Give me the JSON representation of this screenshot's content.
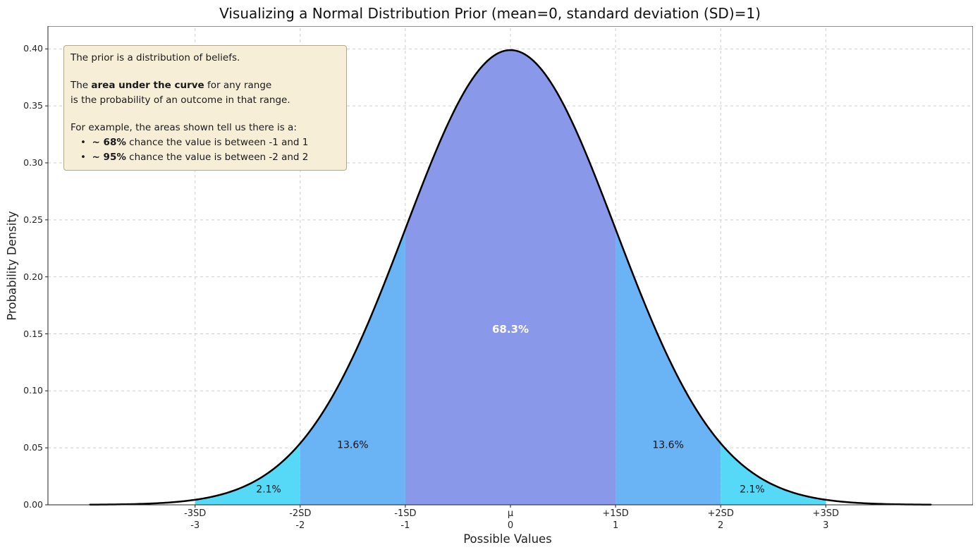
{
  "annotation": {
    "box_bg": "#f7eed8",
    "box_border": "#b4a88c",
    "text_color": "#1a1a1a",
    "line1": "The prior is a distribution of beliefs.",
    "line2_pre": "The ",
    "line2_bold": "area under the curve",
    "line2_post": " for any range",
    "line3": "is the probability of an outcome in that range.",
    "line4": "For example, the areas shown tell us there is a:",
    "bullets": [
      {
        "prefix": "•  ",
        "bold": "~ 68%",
        "text": " chance the value is between -1 and 1"
      },
      {
        "prefix": "•  ",
        "bold": "~ 95%",
        "text": " chance the value is between -2 and 2"
      }
    ]
  },
  "chart_data": {
    "type": "area",
    "title": "Visualizing a Normal Distribution Prior (mean=0, standard deviation (SD)=1)",
    "xlabel": "Possible Values",
    "ylabel": "Probability Density",
    "distribution": {
      "name": "normal",
      "mean": 0,
      "sd": 1,
      "peak_density": 0.3989
    },
    "xlim": [
      -4.4,
      4.4
    ],
    "ylim": [
      0,
      0.42
    ],
    "curve_range": [
      -4,
      4
    ],
    "curve_color": "#000000",
    "grid": true,
    "grid_color": "#cfcfcf",
    "spine_color": "#222222",
    "x_ticks": [
      {
        "value": -3,
        "line1": "-3SD",
        "line2": "-3"
      },
      {
        "value": -2,
        "line1": "-2SD",
        "line2": "-2"
      },
      {
        "value": -1,
        "line1": "-1SD",
        "line2": "-1"
      },
      {
        "value": 0,
        "line1": "μ",
        "line2": "0"
      },
      {
        "value": 1,
        "line1": "+1SD",
        "line2": "1"
      },
      {
        "value": 2,
        "line1": "+2SD",
        "line2": "2"
      },
      {
        "value": 3,
        "line1": "+3SD",
        "line2": "3"
      }
    ],
    "y_ticks": [
      {
        "value": 0.0,
        "label": "0.00"
      },
      {
        "value": 0.05,
        "label": "0.05"
      },
      {
        "value": 0.1,
        "label": "0.10"
      },
      {
        "value": 0.15,
        "label": "0.15"
      },
      {
        "value": 0.2,
        "label": "0.20"
      },
      {
        "value": 0.25,
        "label": "0.25"
      },
      {
        "value": 0.3,
        "label": "0.30"
      },
      {
        "value": 0.35,
        "label": "0.35"
      },
      {
        "value": 0.4,
        "label": "0.40"
      }
    ],
    "regions": [
      {
        "from": -3,
        "to": -2,
        "color": "#55d9f7",
        "label": "2.1%",
        "label_x": -2.3,
        "label_y": 0.014,
        "label_color": "#111111",
        "label_bold": false
      },
      {
        "from": -2,
        "to": -1,
        "color": "#6ab3f5",
        "label": "13.6%",
        "label_x": -1.5,
        "label_y": 0.053,
        "label_color": "#111111",
        "label_bold": false
      },
      {
        "from": -1,
        "to": 1,
        "color": "#8a98ea",
        "label": "68.3%",
        "label_x": 0,
        "label_y": 0.154,
        "label_color": "#ffffff",
        "label_bold": true
      },
      {
        "from": 1,
        "to": 2,
        "color": "#6ab3f5",
        "label": "13.6%",
        "label_x": 1.5,
        "label_y": 0.053,
        "label_color": "#111111",
        "label_bold": false
      },
      {
        "from": 2,
        "to": 3,
        "color": "#55d9f7",
        "label": "2.1%",
        "label_x": 2.3,
        "label_y": 0.014,
        "label_color": "#111111",
        "label_bold": false
      }
    ]
  }
}
